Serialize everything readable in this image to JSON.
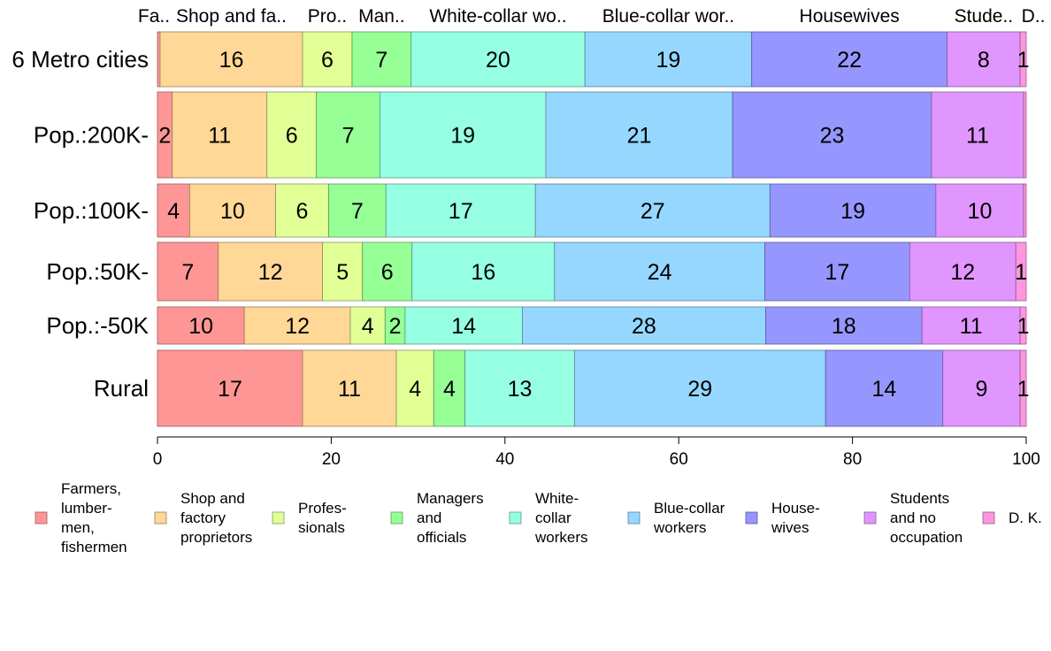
{
  "chart_data": {
    "type": "bar",
    "orientation": "horizontal",
    "stacked": true,
    "categories": [
      "6 Metro cities",
      "Pop.:200K-",
      "Pop.:100K-",
      "Pop.:50K-",
      "Pop.:-50K",
      "Rural"
    ],
    "series": [
      {
        "name": "Farmers, lumbermen, fishermen",
        "legend_lines": [
          "Farmers,",
          "lumber-",
          "men,",
          "fishermen"
        ],
        "top_label": "Fa..",
        "color": "#ff9696",
        "values": [
          0.3,
          1.7,
          3.7,
          7.0,
          10.0,
          16.7
        ],
        "labels": [
          "",
          "2",
          "4",
          "7",
          "10",
          "17"
        ]
      },
      {
        "name": "Shop and factory proprietors",
        "legend_lines": [
          "Shop and",
          "factory",
          "proprietors"
        ],
        "top_label": "Shop and fa..",
        "color": "#ffd796",
        "values": [
          16.4,
          10.9,
          9.9,
          12.0,
          12.2,
          10.8
        ],
        "labels": [
          "16",
          "11",
          "10",
          "12",
          "12",
          "11"
        ]
      },
      {
        "name": "Professionals",
        "legend_lines": [
          "Profes-",
          "sionals"
        ],
        "top_label": "Pro..",
        "color": "#e2ff96",
        "values": [
          5.7,
          5.7,
          6.1,
          4.6,
          4.0,
          4.3
        ],
        "labels": [
          "6",
          "6",
          "6",
          "5",
          "4",
          "4"
        ]
      },
      {
        "name": "Managers and officials",
        "legend_lines": [
          "Managers",
          "and",
          "officials"
        ],
        "top_label": "Man..",
        "color": "#96ff96",
        "values": [
          6.8,
          7.3,
          6.6,
          5.7,
          2.3,
          3.6
        ],
        "labels": [
          "7",
          "7",
          "7",
          "6",
          "2",
          "4"
        ]
      },
      {
        "name": "White-collar workers",
        "legend_lines": [
          "White-",
          "collar",
          "workers"
        ],
        "top_label": "White-collar wo..",
        "color": "#96ffe2",
        "values": [
          20.0,
          19.1,
          17.2,
          16.4,
          13.5,
          12.6
        ],
        "labels": [
          "20",
          "19",
          "17",
          "16",
          "14",
          "13"
        ]
      },
      {
        "name": "Blue-collar workers",
        "legend_lines": [
          "Blue-collar",
          "workers"
        ],
        "top_label": "Blue-collar wor..",
        "color": "#96d7ff",
        "values": [
          19.2,
          21.5,
          27.0,
          24.2,
          28.0,
          28.9
        ],
        "labels": [
          "19",
          "21",
          "27",
          "24",
          "28",
          "29"
        ]
      },
      {
        "name": "Housewives",
        "legend_lines": [
          "House-",
          "wives"
        ],
        "top_label": "Housewives",
        "color": "#9696ff",
        "values": [
          22.5,
          22.9,
          19.1,
          16.7,
          18.0,
          13.5
        ],
        "labels": [
          "22",
          "23",
          "19",
          "17",
          "18",
          "14"
        ]
      },
      {
        "name": "Students and no occupation",
        "legend_lines": [
          "Students",
          "and no",
          "occupation"
        ],
        "top_label": "Stude..",
        "color": "#e196ff",
        "values": [
          8.4,
          10.6,
          10.1,
          12.2,
          11.3,
          8.9
        ],
        "labels": [
          "8",
          "11",
          "10",
          "12",
          "11",
          "9"
        ]
      },
      {
        "name": "D. K.",
        "legend_lines": [
          "D. K."
        ],
        "top_label": "D..",
        "color": "#ff96e1",
        "values": [
          0.7,
          0.3,
          0.3,
          1.2,
          0.7,
          0.7
        ],
        "labels": [
          "1",
          "",
          "",
          "1",
          "1",
          "1"
        ]
      }
    ],
    "xlim": [
      0,
      100
    ],
    "xticks": [
      0,
      20,
      40,
      60,
      80,
      100
    ],
    "title": "",
    "xlabel": "",
    "ylabel": "",
    "legend_position": "bottom",
    "grid": false
  }
}
